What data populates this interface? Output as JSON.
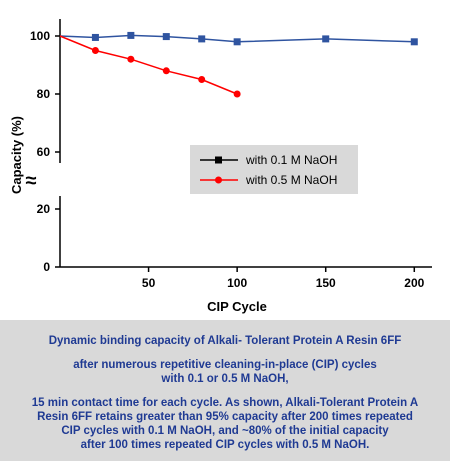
{
  "chart_data": {
    "type": "line",
    "xlabel": "CIP Cycle",
    "ylabel": "Capacity (%)",
    "xlim": [
      0,
      210
    ],
    "x_ticks": [
      50,
      100,
      150,
      200
    ],
    "y_ticks_upper": [
      60,
      80,
      100
    ],
    "y_ticks_lower": [
      0,
      20
    ],
    "axis_break_symbol": "≈",
    "legend_position": "center-right",
    "series": [
      {
        "name": "with 0.1 M NaOH",
        "color": "#2f54a0",
        "marker": "square",
        "x": [
          0,
          20,
          40,
          60,
          80,
          100,
          150,
          200
        ],
        "y": [
          100,
          99.5,
          100.2,
          99.8,
          99.0,
          98.0,
          99.0,
          98.0
        ]
      },
      {
        "name": "with 0.5 M NaOH",
        "color": "#ff0000",
        "marker": "circle",
        "x": [
          0,
          20,
          40,
          60,
          80,
          100
        ],
        "y": [
          100,
          95,
          92,
          88,
          85,
          80
        ]
      }
    ]
  },
  "caption": {
    "line1": "Dynamic binding capacity of Alkali- Tolerant Protein A Resin 6FF",
    "line2": "after numerous repetitive cleaning-in-place (CIP) cycles",
    "line3": "with 0.1 or 0.5 M NaOH,",
    "line4": "15 min contact time for each cycle. As shown, Alkali-Tolerant Protein A",
    "line5": "Resin 6FF retains greater than 95% capacity after 200 times repeated",
    "line6": "CIP cycles with 0.1 M NaOH, and ~80% of the initial capacity",
    "line7": "after 100 times repeated CIP cycles with 0.5 M NaOH."
  }
}
